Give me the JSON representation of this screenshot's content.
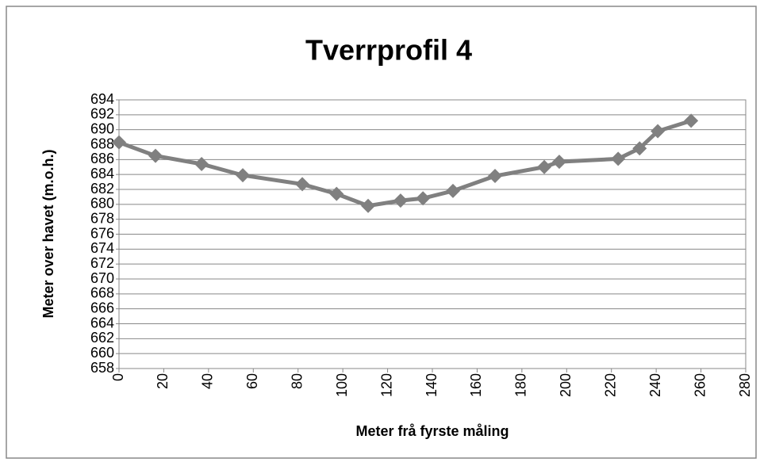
{
  "chart_data": {
    "type": "line",
    "title": "Tverrprofil 4",
    "xlabel": "Meter frå fyrste måling",
    "ylabel": "Meter over havet (m.o.h.)",
    "x": [
      0,
      16.3,
      36.9,
      55.3,
      81.9,
      97.2,
      111.3,
      125.8,
      135.8,
      149.2,
      168,
      190,
      196.7,
      223,
      232.6,
      240.7,
      255.6
    ],
    "series": [
      {
        "name": "Tverrprofil 4",
        "color": "#808080",
        "values": [
          688.3,
          686.5,
          685.4,
          683.9,
          682.7,
          681.4,
          679.8,
          680.5,
          680.8,
          681.8,
          683.8,
          685,
          685.7,
          686.1,
          687.5,
          689.8,
          691.2
        ]
      }
    ],
    "xlim": [
      0,
      280
    ],
    "xticks": [
      0,
      20,
      40,
      60,
      80,
      100,
      120,
      140,
      160,
      180,
      200,
      220,
      240,
      260,
      280
    ],
    "ylim": [
      658,
      694
    ],
    "yticks": [
      658,
      660,
      662,
      664,
      666,
      668,
      670,
      672,
      674,
      676,
      678,
      680,
      682,
      684,
      686,
      688,
      690,
      692,
      694
    ],
    "grid": true
  }
}
